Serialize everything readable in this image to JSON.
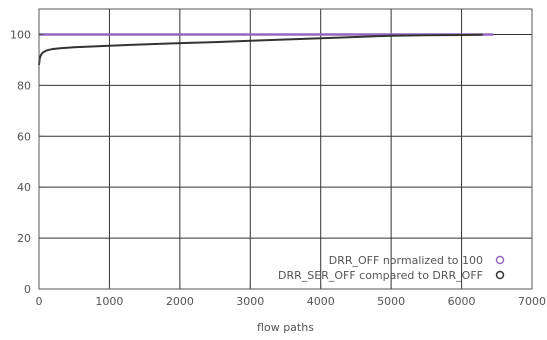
{
  "chart_data": {
    "type": "line",
    "title": "",
    "xlabel": "flow paths",
    "ylabel": "",
    "xlim": [
      0,
      7000
    ],
    "ylim": [
      0,
      110
    ],
    "x_ticks": [
      0,
      1000,
      2000,
      3000,
      4000,
      5000,
      6000,
      7000
    ],
    "y_ticks": [
      0,
      20,
      40,
      60,
      80,
      100
    ],
    "x_tick_labels": [
      "0",
      "1000",
      "2000",
      "3000",
      "4000",
      "5000",
      "6000",
      "7000"
    ],
    "y_tick_labels": [
      "0",
      "20",
      "40",
      "60",
      "80",
      "100"
    ],
    "grid": true,
    "legend_position": "bottom-right",
    "series": [
      {
        "name": "DRR_OFF normalized to 100",
        "color": "#9467bd",
        "marker": "circle",
        "x": [
          0,
          6450
        ],
        "y": [
          100,
          100
        ]
      },
      {
        "name": "DRR_SER_OFF compared to DRR_OFF",
        "color": "#333333",
        "marker": "circle",
        "x": [
          0,
          10,
          25,
          50,
          100,
          150,
          200,
          300,
          500,
          1000,
          1500,
          2000,
          2500,
          3000,
          3500,
          4000,
          4500,
          5000,
          5500,
          6000,
          6300
        ],
        "y": [
          88,
          90.5,
          91.8,
          92.8,
          93.6,
          94,
          94.3,
          94.6,
          95,
          95.6,
          96.1,
          96.6,
          97,
          97.5,
          98,
          98.5,
          99,
          99.5,
          99.7,
          99.8,
          99.9
        ]
      }
    ]
  }
}
